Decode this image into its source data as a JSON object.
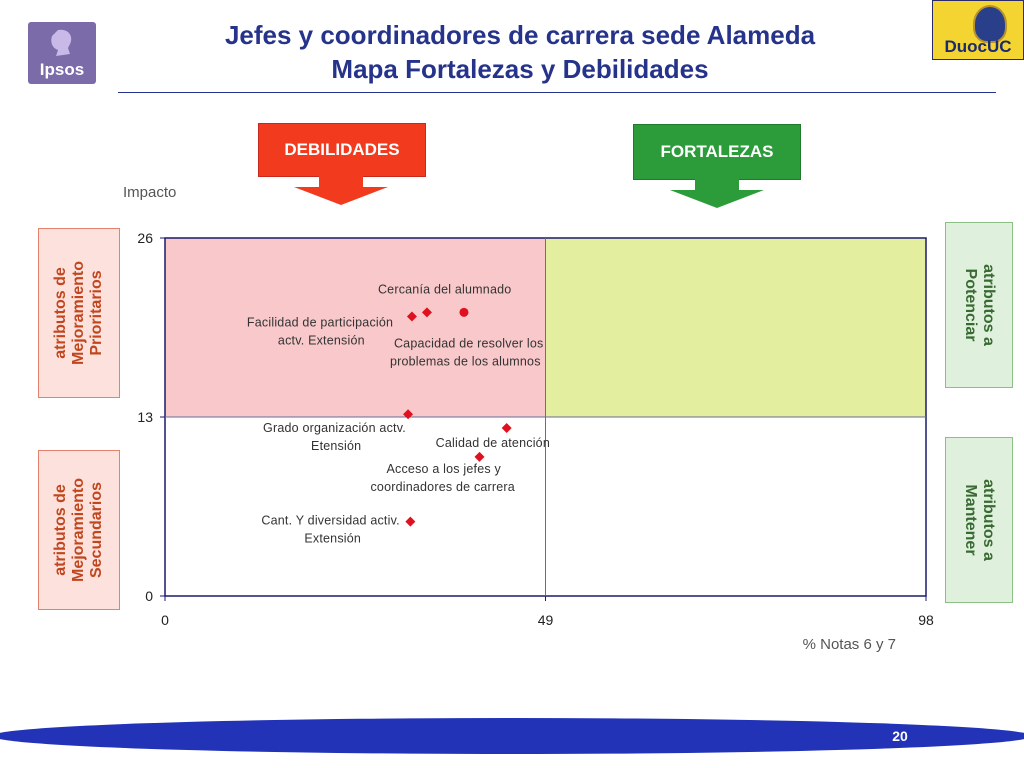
{
  "header": {
    "title_line1": "Jefes y coordinadores de carrera sede Alameda",
    "title_line2": "Mapa Fortalezas y Debilidades",
    "logo_left_text": "Ipsos",
    "logo_right_text": "DuocUC"
  },
  "labels": {
    "debilidades": "DEBILIDADES",
    "fortalezas": "FORTALEZAS",
    "side_prioritarios": "atributos de\nMejoramiento\nPrioritarios",
    "side_secundarios": "atributos de\nMejoramiento\nSecundarios",
    "side_potenciar": "atributos a\nPotenciar",
    "side_mantener": "atributos a\nMantener"
  },
  "colors": {
    "title": "#25338a",
    "debilidades_arrow": "#f23a1e",
    "fortalezas_arrow": "#2c9c3a",
    "quadrant_debilidades": "#f9c8cb",
    "quadrant_fortalezas": "#e3ef9e",
    "marker": "#e0101e",
    "bottom_bar": "#2233b8"
  },
  "chart_data": {
    "type": "scatter",
    "title": "",
    "xlabel": "% Notas 6 y 7",
    "ylabel": "Impacto",
    "xlim": [
      0,
      98
    ],
    "ylim": [
      0,
      26
    ],
    "xticks": [
      "0",
      "49",
      "98"
    ],
    "yticks": [
      "0",
      "13",
      "26"
    ],
    "quadrant_split": {
      "x": 49,
      "y": 13
    },
    "grid": false,
    "points": [
      {
        "label": "Cercanía del alumnado",
        "x": 38.5,
        "y": 20.6,
        "marker": "diamond"
      },
      {
        "label": "Facilidad de participación\nactv. Extensión",
        "x": 31.8,
        "y": 20.3,
        "marker": "diamond"
      },
      {
        "label": "Capacidad de resolver los\nproblemas de los alumnos",
        "x": 38.5,
        "y": 20.6,
        "marker": "circle"
      },
      {
        "label": "Grado organización actv.\nEtensión",
        "x": 31.3,
        "y": 13.2,
        "marker": "diamond"
      },
      {
        "label": "Calidad de atención",
        "x": 44.0,
        "y": 12.2,
        "marker": "diamond"
      },
      {
        "label": "Acceso a los jefes y\ncoordinadores de carrera",
        "x": 40.5,
        "y": 10.1,
        "marker": "diamond"
      },
      {
        "label": "Cant. Y diversidad activ.\nExtensión",
        "x": 31.6,
        "y": 5.4,
        "marker": "diamond"
      }
    ]
  },
  "footer": {
    "page_number": "20"
  }
}
